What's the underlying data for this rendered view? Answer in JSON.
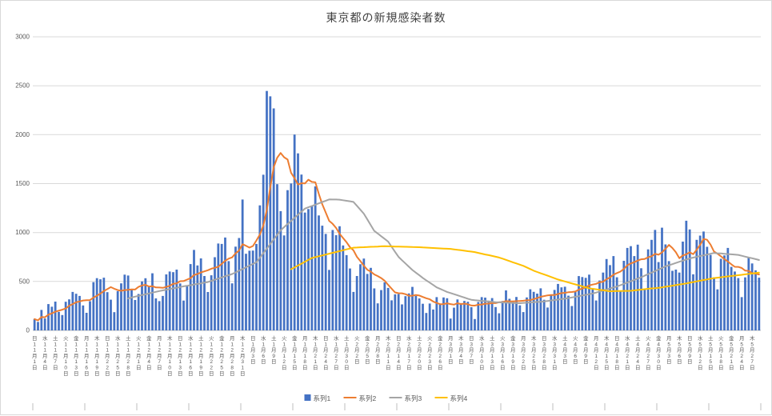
{
  "colors": {
    "background": "#FFFFFF",
    "grid": "#D9D9D9",
    "axis": "#BFBFBF",
    "tick_text": "#595959",
    "title_text": "#404040"
  },
  "chart_data": {
    "type": "combo-bar-line",
    "title": "東京都の新規感染者数",
    "ylim": [
      0,
      3000
    ],
    "y_ticks": [
      0,
      500,
      1000,
      1500,
      2000,
      2500,
      3000
    ],
    "grid": "horizontal",
    "legend_position": "bottom",
    "n_days": 210,
    "x_start": "2020-11-01",
    "x_tick_every_days": 3,
    "x_ticks": [
      "日11月1日",
      "水11月4日",
      "土11月7日",
      "火11月10日",
      "金11月13日",
      "月11月16日",
      "木11月19日",
      "日11月22日",
      "水11月25日",
      "土11月28日",
      "火12月1日",
      "金12月4日",
      "月12月7日",
      "木12月10日",
      "日12月13日",
      "水12月16日",
      "土12月19日",
      "火12月22日",
      "金12月25日",
      "月12月28日",
      "木12月31日",
      "日1月3日",
      "水1月6日",
      "土1月9日",
      "火1月12日",
      "金1月15日",
      "月1月18日",
      "木1月21日",
      "日1月24日",
      "水1月27日",
      "土1月30日",
      "火2月2日",
      "金2月5日",
      "月2月8日",
      "木2月11日",
      "日2月14日",
      "水2月17日",
      "土2月20日",
      "火2月23日",
      "金2月26日",
      "月3月1日",
      "木3月4日",
      "日3月7日",
      "水3月10日",
      "土3月13日",
      "火3月16日",
      "金3月19日",
      "月3月22日",
      "木3月25日",
      "日3月28日",
      "水3月31日",
      "土4月3日",
      "火4月6日",
      "金4月9日",
      "月4月12日",
      "木4月15日",
      "日4月18日",
      "水4月21日",
      "土4月24日",
      "火4月27日",
      "金4月30日",
      "月5月3日",
      "木5月6日",
      "日5月9日",
      "水5月12日",
      "土5月15日",
      "火5月18日",
      "金5月21日",
      "月5月24日",
      "木5月27日"
    ],
    "series": [
      {
        "name": "系列1",
        "type": "bar",
        "color": "#4472C4",
        "values": [
          116,
          87,
          209,
          122,
          269,
          242,
          294,
          189,
          157,
          293,
          317,
          393,
          374,
          352,
          255,
          180,
          298,
          493,
          534,
          522,
          539,
          391,
          314,
          186,
          401,
          481,
          570,
          561,
          418,
          311,
          372,
          500,
          533,
          449,
          584,
          327,
          299,
          352,
          572,
          602,
          595,
          621,
          480,
          305,
          460,
          678,
          822,
          664,
          736,
          556,
          392,
          563,
          748,
          888,
          884,
          949,
          708,
          481,
          856,
          944,
          1337,
          783,
          814,
          816,
          884,
          1278,
          1591,
          2447,
          2392,
          2268,
          1494,
          1219,
          970,
          1433,
          1502,
          2001,
          1809,
          1592,
          1204,
          1240,
          1274,
          1471,
          1175,
          1070,
          986,
          618,
          1026,
          973,
          1064,
          868,
          769,
          633,
          393,
          556,
          676,
          734,
          577,
          639,
          429,
          276,
          412,
          491,
          434,
          307,
          369,
          371,
          266,
          350,
          378,
          445,
          353,
          327,
          272,
          178,
          275,
          213,
          340,
          270,
          337,
          329,
          121,
          232,
          316,
          279,
          301,
          293,
          237,
          116,
          290,
          340,
          335,
          304,
          330,
          239,
          175,
          300,
          409,
          323,
          303,
          342,
          256,
          187,
          337,
          420,
          394,
          376,
          430,
          313,
          234,
          364,
          414,
          475,
          440,
          446,
          355,
          249,
          399,
          555,
          545,
          537,
          570,
          421,
          306,
          510,
          591,
          729,
          667,
          759,
          543,
          405,
          711,
          843,
          861,
          759,
          876,
          635,
          425,
          828,
          925,
          1027,
          698,
          1050,
          879,
          708,
          609,
          621,
          591,
          907,
          1121,
          1032,
          573,
          925,
          969,
          1010,
          854,
          772,
          542,
          419,
          732,
          766,
          843,
          649,
          602,
          535,
          340,
          542,
          743,
          684,
          614,
          539
        ]
      },
      {
        "name": "系列2",
        "type": "line",
        "color": "#ED7D31",
        "values": [
          116,
          102,
          137,
          134,
          161,
          174,
          191,
          202,
          212,
          224,
          252,
          269,
          288,
          296,
          306,
          309,
          310,
          335,
          355,
          376,
          403,
          422,
          442,
          426,
          412,
          405,
          412,
          415,
          419,
          418,
          445,
          459,
          466,
          449,
          452,
          439,
          438,
          435,
          445,
          455,
          476,
          481,
          503,
          504,
          519,
          534,
          566,
          576,
          592,
          603,
          615,
          630,
          640,
          650,
          681,
          711,
          733,
          746,
          788,
          816,
          880,
          865,
          846,
          862,
          919,
          979,
          1072,
          1230,
          1460,
          1668,
          1765,
          1813,
          1769,
          1746,
          1611,
          1555,
          1490,
          1504,
          1502,
          1540,
          1517,
          1513,
          1395,
          1289,
          1203,
          1119,
          1089,
          1046,
          987,
          944,
          901,
          850,
          818,
          751,
          708,
          661,
          620,
          601,
          572,
          555,
          535,
          508,
          465,
          427,
          388,
          380,
          379,
          370,
          354,
          355,
          362,
          356,
          342,
          329,
          318,
          295,
          280,
          268,
          269,
          277,
          269,
          263,
          278,
          269,
          274,
          267,
          254,
          253,
          262,
          265,
          273,
          274,
          279,
          279,
          288,
          289,
          299,
          297,
          297,
          299,
          301,
          303,
          308,
          310,
          320,
          330,
          343,
          351,
          358,
          362,
          361,
          372,
          381,
          384,
          390,
          392,
          397,
          417,
          427,
          441,
          459,
          468,
          476,
          492,
          497,
          523,
          542,
          569,
          586,
          601,
          629,
          665,
          684,
          697,
          714,
          727,
          730,
          747,
          758,
          782,
          773,
          798,
          833,
          874,
          842,
          799,
          737,
          766,
          777,
          798,
          779,
          824,
          874,
          934,
          926,
          876,
          806,
          784,
          757,
          728,
          704,
          675,
          650,
          649,
          638,
          611,
          608,
          585,
          580,
          571
        ]
      },
      {
        "name": "系列3",
        "type": "line",
        "color": "#A5A5A5",
        "values": [
          null,
          null,
          null,
          null,
          null,
          null,
          null,
          null,
          null,
          null,
          null,
          null,
          null,
          null,
          null,
          null,
          null,
          null,
          null,
          null,
          null,
          null,
          null,
          null,
          null,
          null,
          null,
          326,
          336,
          345,
          353,
          361,
          369,
          378,
          386,
          394,
          402,
          409,
          416,
          423,
          430,
          436,
          443,
          450,
          456,
          462,
          469,
          475,
          481,
          488,
          494,
          506,
          518,
          529,
          541,
          553,
          564,
          576,
          593,
          610,
          627,
          645,
          662,
          679,
          696,
          743,
          790,
          836,
          883,
          930,
          976,
          1023,
          1055,
          1087,
          1118,
          1150,
          1182,
          1213,
          1245,
          1258,
          1271,
          1285,
          1298,
          1311,
          1325,
          1338,
          1337,
          1337,
          1336,
          1330,
          1324,
          1319,
          1313,
          1273,
          1233,
          1193,
          1134,
          1075,
          1017,
          990,
          962,
          935,
          907,
          855,
          803,
          751,
          717,
          684,
          650,
          617,
          590,
          563,
          536,
          512,
          488,
          464,
          440,
          424,
          409,
          393,
          382,
          370,
          359,
          347,
          336,
          324,
          313,
          309,
          306,
          302,
          299,
          295,
          292,
          288,
          287,
          285,
          284,
          282,
          281,
          279,
          278,
          281,
          283,
          286,
          288,
          291,
          293,
          296,
          301,
          306,
          311,
          315,
          320,
          325,
          330,
          337,
          343,
          350,
          357,
          363,
          370,
          377,
          387,
          397,
          408,
          418,
          428,
          439,
          449,
          462,
          476,
          489,
          503,
          516,
          530,
          543,
          559,
          575,
          591,
          606,
          622,
          638,
          654,
          666,
          677,
          689,
          701,
          713,
          724,
          736,
          744,
          752,
          760,
          767,
          775,
          783,
          791,
          788,
          786,
          783,
          780,
          777,
          775,
          772,
          763,
          754,
          745,
          737,
          728,
          719
        ]
      },
      {
        "name": "系列4",
        "type": "line",
        "color": "#FFC000",
        "values": [
          null,
          null,
          null,
          null,
          null,
          null,
          null,
          null,
          null,
          null,
          null,
          null,
          null,
          null,
          null,
          null,
          null,
          null,
          null,
          null,
          null,
          null,
          null,
          null,
          null,
          null,
          null,
          null,
          null,
          null,
          null,
          null,
          null,
          null,
          null,
          null,
          null,
          null,
          null,
          null,
          null,
          null,
          null,
          null,
          null,
          null,
          null,
          null,
          null,
          null,
          null,
          null,
          null,
          null,
          null,
          null,
          null,
          null,
          null,
          null,
          null,
          null,
          null,
          null,
          null,
          null,
          null,
          null,
          null,
          null,
          null,
          null,
          null,
          null,
          625,
          644,
          663,
          682,
          702,
          721,
          740,
          749,
          758,
          766,
          775,
          784,
          793,
          801,
          810,
          819,
          828,
          836,
          845,
          847,
          849,
          850,
          852,
          854,
          855,
          857,
          859,
          860,
          859,
          858,
          857,
          856,
          855,
          854,
          853,
          852,
          851,
          850,
          848,
          846,
          844,
          842,
          840,
          838,
          836,
          835,
          833,
          828,
          823,
          819,
          814,
          809,
          805,
          800,
          792,
          784,
          776,
          769,
          761,
          753,
          745,
          733,
          721,
          709,
          696,
          684,
          672,
          660,
          643,
          627,
          610,
          597,
          584,
          571,
          559,
          546,
          533,
          520,
          510,
          500,
          490,
          480,
          470,
          460,
          450,
          440,
          430,
          425,
          420,
          415,
          410,
          405,
          400,
          401,
          402,
          403,
          404,
          404,
          405,
          409,
          413,
          417,
          421,
          425,
          429,
          432,
          436,
          440,
          446,
          451,
          457,
          463,
          469,
          474,
          480,
          487,
          494,
          501,
          508,
          515,
          521,
          528,
          535,
          539,
          543,
          548,
          552,
          556,
          560,
          564,
          568,
          573,
          577,
          581,
          586,
          590
        ]
      }
    ]
  }
}
